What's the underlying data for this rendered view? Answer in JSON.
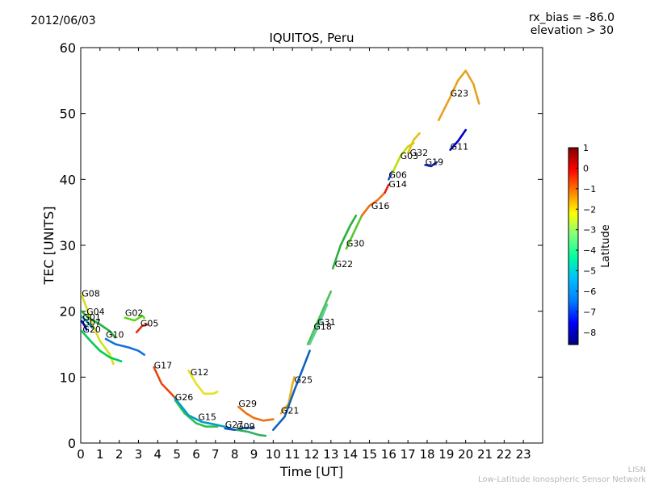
{
  "header": {
    "date": "2012/06/03",
    "rx_bias": "rx_bias = -86.0",
    "elevation": "elevation > 30"
  },
  "footer": {
    "org_short": "LISN",
    "org_long": "Low-Latitude Ionospheric Sensor Network"
  },
  "chart_data": {
    "type": "line",
    "title": "IQUITOS, Peru",
    "xlabel": "Time [UT]",
    "ylabel": "TEC [UNITS]",
    "xlim": [
      0,
      24
    ],
    "ylim": [
      0,
      60
    ],
    "xticks": [
      0,
      1,
      2,
      3,
      4,
      5,
      6,
      7,
      8,
      9,
      10,
      11,
      12,
      13,
      14,
      15,
      16,
      17,
      18,
      19,
      20,
      21,
      22,
      23
    ],
    "yticks": [
      0,
      10,
      20,
      30,
      40,
      50,
      60
    ],
    "colorbar": {
      "label": "Latitude",
      "range": [
        -8.6,
        1.0
      ],
      "ticks": [
        1,
        0,
        -1,
        -2,
        -3,
        -4,
        -5,
        -6,
        -7,
        -8
      ],
      "colormap": [
        "#00007f",
        "#0000ff",
        "#007fff",
        "#00bfff",
        "#00ffa0",
        "#7fff7f",
        "#ffff00",
        "#ff7f00",
        "#ff0000",
        "#7f0000"
      ]
    },
    "series": [
      {
        "name": "G08",
        "color": "#d4e020",
        "label_at": [
          0.05,
          22.2
        ],
        "points": [
          [
            0.05,
            22.5
          ],
          [
            0.3,
            20.5
          ],
          [
            0.6,
            18
          ],
          [
            1,
            15.5
          ],
          [
            1.5,
            13.5
          ],
          [
            1.7,
            12
          ]
        ]
      },
      {
        "name": "G04",
        "color": "#22b040",
        "label_at": [
          0.3,
          19.5
        ],
        "points": [
          [
            0.05,
            20
          ],
          [
            0.4,
            19
          ],
          [
            1,
            18
          ],
          [
            1.5,
            17
          ],
          [
            1.8,
            16
          ]
        ]
      },
      {
        "name": "G01",
        "color": "#00a0c0",
        "label_at": [
          0.1,
          18.6
        ],
        "points": [
          [
            0.05,
            19.2
          ],
          [
            0.3,
            18.5
          ],
          [
            0.6,
            17.5
          ]
        ]
      },
      {
        "name": "G07",
        "color": "#0000cc",
        "label_at": [
          0.1,
          17.8
        ],
        "points": [
          [
            0.05,
            18.5
          ],
          [
            0.2,
            17.8
          ],
          [
            0.3,
            17.2
          ]
        ]
      },
      {
        "name": "G20",
        "color": "#00cc55",
        "label_at": [
          0.1,
          16.8
        ],
        "points": [
          [
            0.05,
            17
          ],
          [
            0.5,
            15.5
          ],
          [
            1,
            14
          ],
          [
            1.5,
            13
          ],
          [
            2,
            12.5
          ],
          [
            2.1,
            12.4
          ]
        ]
      },
      {
        "name": "G10",
        "color": "#1070e0",
        "label_at": [
          1.3,
          16
        ],
        "points": [
          [
            1.3,
            15.8
          ],
          [
            1.8,
            15
          ],
          [
            2.5,
            14.5
          ],
          [
            3,
            14
          ],
          [
            3.3,
            13.4
          ]
        ]
      },
      {
        "name": "G02",
        "color": "#5ad818",
        "label_at": [
          2.3,
          19.3
        ],
        "points": [
          [
            2.3,
            19
          ],
          [
            2.8,
            18.6
          ],
          [
            3.2,
            19.3
          ],
          [
            3.3,
            19
          ]
        ]
      },
      {
        "name": "G05",
        "color": "#e43010",
        "label_at": [
          3.1,
          17.7
        ],
        "points": [
          [
            2.9,
            16.8
          ],
          [
            3.2,
            17.8
          ],
          [
            3.5,
            18
          ]
        ]
      },
      {
        "name": "G17",
        "color": "#e84810",
        "label_at": [
          3.8,
          11.3
        ],
        "points": [
          [
            3.8,
            11.5
          ],
          [
            4.2,
            9
          ],
          [
            4.7,
            7.5
          ],
          [
            5,
            6.5
          ]
        ]
      },
      {
        "name": "G12",
        "color": "#e8e020",
        "label_at": [
          5.7,
          10.3
        ],
        "points": [
          [
            5.6,
            11
          ],
          [
            6,
            9
          ],
          [
            6.4,
            7.5
          ],
          [
            6.9,
            7.5
          ],
          [
            7.1,
            7.8
          ]
        ]
      },
      {
        "name": "G26",
        "color": "#30c050",
        "label_at": [
          4.9,
          6.5
        ],
        "points": [
          [
            4.9,
            6.5
          ],
          [
            5.4,
            4.5
          ],
          [
            6,
            3
          ],
          [
            6.5,
            2.5
          ],
          [
            7.1,
            2.5
          ]
        ]
      },
      {
        "name": "G15",
        "color": "#00a0c0",
        "label_at": [
          6.1,
          3.5
        ],
        "points": [
          [
            4.9,
            6.8
          ],
          [
            5.6,
            4.2
          ],
          [
            6.3,
            3.2
          ],
          [
            7,
            2.8
          ],
          [
            7.6,
            2.4
          ],
          [
            7.9,
            2.1
          ]
        ]
      },
      {
        "name": "G29",
        "color": "#f07010",
        "label_at": [
          8.2,
          5.5
        ],
        "points": [
          [
            8.2,
            5.5
          ],
          [
            8.6,
            4.5
          ],
          [
            9,
            3.8
          ],
          [
            9.5,
            3.4
          ],
          [
            10,
            3.6
          ]
        ]
      },
      {
        "name": "G27",
        "color": "#1050c0",
        "label_at": [
          7.5,
          2.3
        ],
        "points": [
          [
            7.5,
            2.2
          ],
          [
            8,
            2
          ],
          [
            8.5,
            2.3
          ],
          [
            9,
            2.3
          ]
        ]
      },
      {
        "name": "G09",
        "color": "#30b060",
        "label_at": [
          8.1,
          2.1
        ],
        "points": [
          [
            8.1,
            2
          ],
          [
            8.7,
            1.7
          ],
          [
            9.3,
            1.2
          ],
          [
            9.6,
            1.1
          ]
        ]
      },
      {
        "name": "G21",
        "color": "#e8b020",
        "label_at": [
          10.4,
          4.5
        ],
        "points": [
          [
            10.4,
            4.5
          ],
          [
            10.8,
            6
          ],
          [
            11,
            9
          ],
          [
            11.1,
            10
          ]
        ]
      },
      {
        "name": "G25",
        "color": "#1060c0",
        "label_at": [
          11.1,
          9.1
        ],
        "points": [
          [
            10,
            2
          ],
          [
            10.6,
            4
          ],
          [
            11.1,
            8
          ],
          [
            11.5,
            11
          ],
          [
            11.9,
            14
          ]
        ]
      },
      {
        "name": "G31",
        "color": "#50c050",
        "label_at": [
          12.3,
          17.9
        ],
        "points": [
          [
            11.8,
            15
          ],
          [
            12.4,
            19
          ],
          [
            13,
            23
          ]
        ]
      },
      {
        "name": "G18",
        "color": "#5ad0a0",
        "label_at": [
          12.1,
          17.2
        ],
        "points": [
          [
            11.9,
            15
          ],
          [
            12.3,
            17.5
          ],
          [
            12.8,
            21
          ]
        ]
      },
      {
        "name": "G22",
        "color": "#2cb040",
        "label_at": [
          13.2,
          26.7
        ],
        "points": [
          [
            13.1,
            26.5
          ],
          [
            13.5,
            30
          ],
          [
            14,
            33
          ],
          [
            14.3,
            34.5
          ]
        ]
      },
      {
        "name": "G30",
        "color": "#58c830",
        "label_at": [
          13.8,
          29.8
        ],
        "points": [
          [
            13.8,
            29.5
          ],
          [
            14.2,
            32
          ],
          [
            14.6,
            34.5
          ],
          [
            15,
            36
          ]
        ]
      },
      {
        "name": "G16",
        "color": "#f07018",
        "label_at": [
          15.1,
          35.5
        ],
        "points": [
          [
            14.6,
            34.5
          ],
          [
            15,
            36
          ],
          [
            15.4,
            36.8
          ],
          [
            15.8,
            38
          ]
        ]
      },
      {
        "name": "G14",
        "color": "#e82010",
        "label_at": [
          16,
          38.8
        ],
        "points": [
          [
            15.8,
            38
          ],
          [
            16,
            39.2
          ]
        ]
      },
      {
        "name": "G06",
        "color": "#2050d0",
        "label_at": [
          16,
          40.2
        ],
        "points": [
          [
            16,
            40
          ],
          [
            16.2,
            41.2
          ]
        ]
      },
      {
        "name": "G03",
        "color": "#b8e010",
        "label_at": [
          16.6,
          43.1
        ],
        "points": [
          [
            16.2,
            41
          ],
          [
            16.6,
            43.5
          ],
          [
            17,
            45
          ],
          [
            17.3,
            45.5
          ]
        ]
      },
      {
        "name": "G32",
        "color": "#e8c010",
        "label_at": [
          17.1,
          43.6
        ],
        "points": [
          [
            17,
            44
          ],
          [
            17.3,
            46
          ],
          [
            17.6,
            47
          ]
        ]
      },
      {
        "name": "G19",
        "color": "#1020c0",
        "label_at": [
          17.9,
          42.2
        ],
        "points": [
          [
            17.9,
            42.2
          ],
          [
            18.2,
            42
          ],
          [
            18.5,
            42.6
          ]
        ]
      },
      {
        "name": "G11",
        "color": "#0000cc",
        "label_at": [
          19.2,
          44.5
        ],
        "points": [
          [
            19.2,
            44.5
          ],
          [
            19.6,
            45.8
          ],
          [
            20,
            47.5
          ]
        ]
      },
      {
        "name": "G23",
        "color": "#e8a020",
        "label_at": [
          19.2,
          52.6
        ],
        "points": [
          [
            18.6,
            49
          ],
          [
            19.2,
            52.5
          ],
          [
            19.6,
            55
          ],
          [
            20,
            56.5
          ],
          [
            20.4,
            54.5
          ],
          [
            20.7,
            51.5
          ]
        ]
      }
    ]
  }
}
